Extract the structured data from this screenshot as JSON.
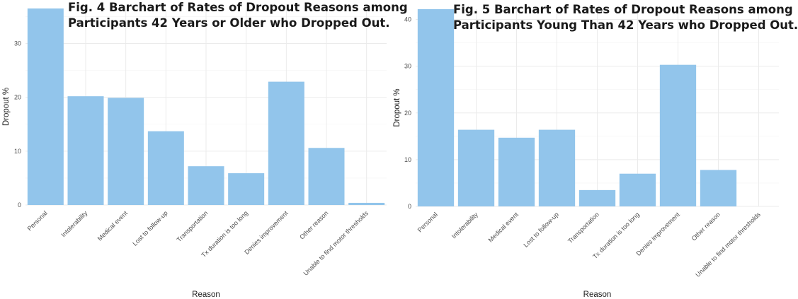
{
  "chart_data": [
    {
      "type": "bar",
      "title_lines": [
        "Fig. 4 Barchart of Rates of Dropout Reasons among",
        "Participants 42 Years or Older who Dropped Out."
      ],
      "xlabel": "Reason",
      "ylabel": "Dropout %",
      "categories": [
        "Personal",
        "Intolerability",
        "Medical event",
        "Lost to follow-up",
        "Transportation",
        "Tx duration is too long",
        "Denies improvement",
        "Other reason",
        "Unable to find motor thresholds"
      ],
      "values": [
        36.5,
        20.2,
        19.9,
        13.7,
        7.2,
        5.9,
        22.9,
        10.6,
        0.4
      ],
      "ylim": [
        0,
        36.5
      ],
      "yticks": [
        0,
        10,
        20,
        30
      ],
      "grid": true,
      "bar_color": "#92c5eb"
    },
    {
      "type": "bar",
      "title_lines": [
        "Fig. 5 Barchart of Rates of Dropout Reasons among",
        "Participants Young Than 42 Years who Dropped Out."
      ],
      "xlabel": "Reason",
      "ylabel": "Dropout %",
      "categories": [
        "Personal",
        "Intolerability",
        "Medical event",
        "Lost to follow-up",
        "Transportation",
        "Tx duration is too long",
        "Denies improvement",
        "Other reason",
        "Unable to find motor thresholds"
      ],
      "values": [
        42.2,
        16.4,
        14.7,
        16.4,
        3.5,
        7.0,
        30.3,
        7.8,
        0
      ],
      "ylim": [
        0,
        42.2
      ],
      "yticks": [
        0,
        10,
        20,
        30,
        40
      ],
      "grid": true,
      "bar_color": "#92c5eb"
    }
  ]
}
